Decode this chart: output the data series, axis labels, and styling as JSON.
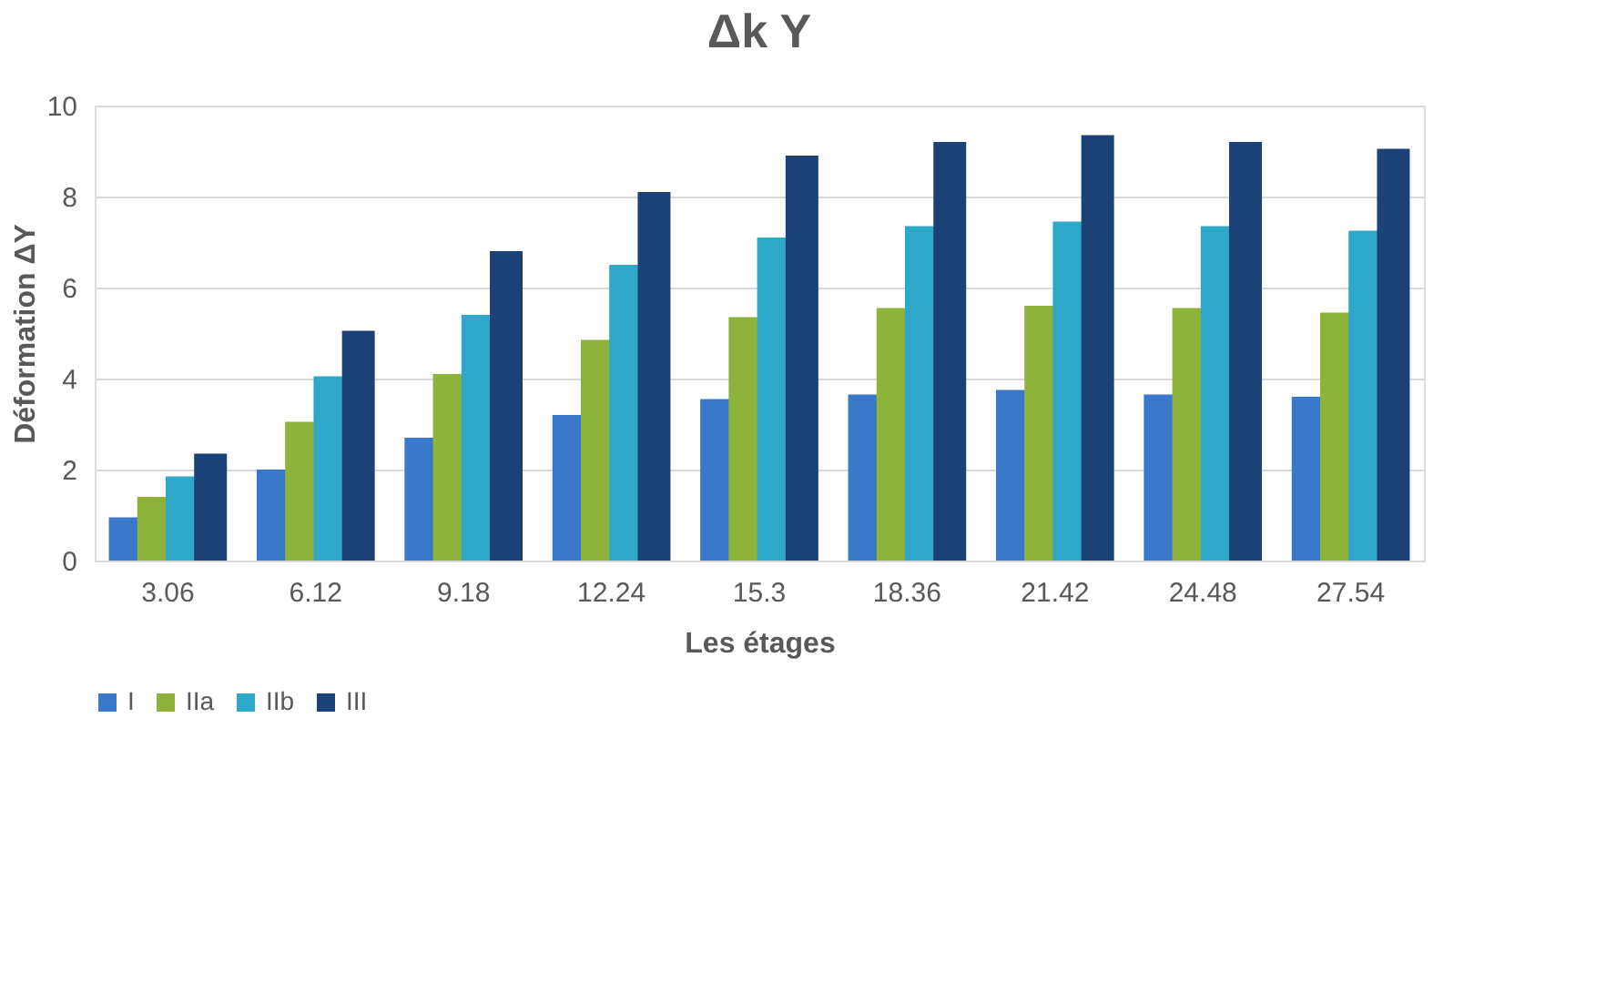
{
  "chart_data": {
    "type": "bar",
    "title": "Δk Y",
    "xlabel": "Les étages",
    "ylabel": "Déformation ΔY",
    "categories": [
      "3.06",
      "6.12",
      "9.18",
      "12.24",
      "15.3",
      "18.36",
      "21.42",
      "24.48",
      "27.54"
    ],
    "series": [
      {
        "name": "I",
        "color": "#3a78c9",
        "values": [
          0.95,
          2.0,
          2.7,
          3.2,
          3.55,
          3.65,
          3.75,
          3.65,
          3.6
        ]
      },
      {
        "name": "IIa",
        "color": "#8db33a",
        "values": [
          1.4,
          3.05,
          4.1,
          4.85,
          5.35,
          5.55,
          5.6,
          5.55,
          5.45
        ]
      },
      {
        "name": "IIb",
        "color": "#2ea7c9",
        "values": [
          1.85,
          4.05,
          5.4,
          6.5,
          7.1,
          7.35,
          7.45,
          7.35,
          7.25
        ]
      },
      {
        "name": "III",
        "color": "#1c4177",
        "values": [
          2.35,
          5.05,
          6.8,
          8.1,
          8.9,
          9.2,
          9.35,
          9.2,
          9.05
        ]
      }
    ],
    "ylim": [
      0,
      10
    ],
    "yticks": [
      0,
      2,
      4,
      6,
      8,
      10
    ],
    "grid": "y",
    "legend": "bottom"
  }
}
